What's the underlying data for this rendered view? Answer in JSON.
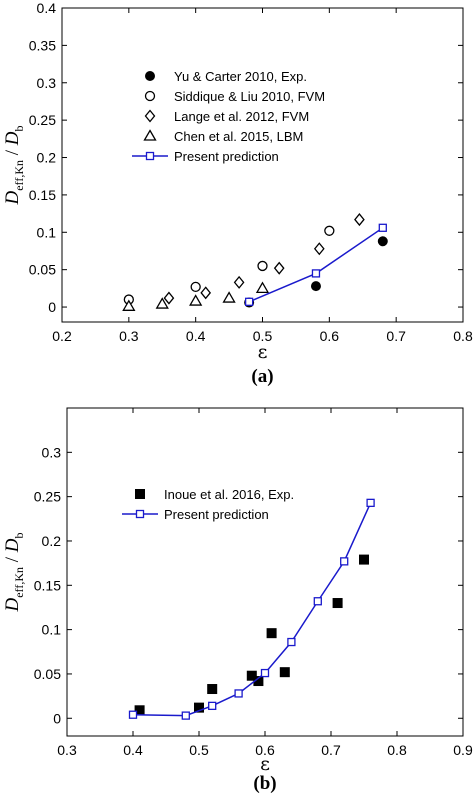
{
  "chart_data": [
    {
      "type": "scatter",
      "panel_label": "(a)",
      "xlabel": "ε",
      "ylabel_main": "D",
      "ylabel_sub": "eff,Kn",
      "ylabel_den": "D",
      "ylabel_den_sub": "b",
      "xlim": [
        0.2,
        0.8
      ],
      "ylim": [
        -0.02,
        0.4
      ],
      "xticks": [
        0.2,
        0.3,
        0.4,
        0.5,
        0.6,
        0.7,
        0.8
      ],
      "yticks": [
        0,
        0.05,
        0.1,
        0.15,
        0.2,
        0.25,
        0.3,
        0.35,
        0.4
      ],
      "xtick_labels": [
        "0.2",
        "0.3",
        "0.4",
        "0.5",
        "0.6",
        "0.7",
        "0.8"
      ],
      "ytick_labels": [
        "0",
        "0.05",
        "0.1",
        "0.15",
        "0.2",
        "0.25",
        "0.3",
        "0.35",
        "0.4"
      ],
      "legend_position": "upper-center",
      "series": [
        {
          "name": "Yu & Carter 2010, Exp.",
          "marker": "filled-circle",
          "color": "#000000",
          "x": [
            0.48,
            0.58,
            0.68
          ],
          "y": [
            0.006,
            0.028,
            0.088
          ]
        },
        {
          "name": "Siddique & Liu 2010, FVM",
          "marker": "open-circle",
          "color": "#000000",
          "x": [
            0.3,
            0.4,
            0.5,
            0.6
          ],
          "y": [
            0.01,
            0.027,
            0.055,
            0.102
          ]
        },
        {
          "name": "Lange et al. 2012, FVM",
          "marker": "open-diamond",
          "color": "#000000",
          "x": [
            0.36,
            0.415,
            0.465,
            0.525,
            0.585,
            0.645
          ],
          "y": [
            0.012,
            0.019,
            0.033,
            0.052,
            0.078,
            0.117
          ]
        },
        {
          "name": "Chen et al. 2015, LBM",
          "marker": "open-triangle",
          "color": "#000000",
          "x": [
            0.3,
            0.35,
            0.4,
            0.45,
            0.5
          ],
          "y": [
            0.001,
            0.004,
            0.008,
            0.012,
            0.025
          ]
        },
        {
          "name": "Present prediction",
          "marker": "open-square-line",
          "color": "#1a1acc",
          "x": [
            0.48,
            0.58,
            0.68
          ],
          "y": [
            0.007,
            0.045,
            0.106
          ]
        }
      ]
    },
    {
      "type": "scatter",
      "panel_label": "(b)",
      "xlabel": "ε",
      "ylabel_main": "D",
      "ylabel_sub": "eff,Kn",
      "ylabel_den": "D",
      "ylabel_den_sub": "b",
      "xlim": [
        0.3,
        0.9
      ],
      "ylim": [
        -0.02,
        0.35
      ],
      "xticks": [
        0.3,
        0.4,
        0.5,
        0.6,
        0.7,
        0.8,
        0.9
      ],
      "yticks": [
        0,
        0.05,
        0.1,
        0.15,
        0.2,
        0.25,
        0.3
      ],
      "xtick_labels": [
        "0.3",
        "0.4",
        "0.5",
        "0.6",
        "0.7",
        "0.8",
        "0.9"
      ],
      "ytick_labels": [
        "0",
        "0.05",
        "0.1",
        "0.15",
        "0.2",
        "0.25",
        "0.3"
      ],
      "legend_position": "upper-left",
      "series": [
        {
          "name": "Inoue et al. 2016, Exp.",
          "marker": "filled-square",
          "color": "#000000",
          "x": [
            0.41,
            0.5,
            0.52,
            0.58,
            0.59,
            0.61,
            0.63,
            0.71,
            0.75
          ],
          "y": [
            0.009,
            0.012,
            0.033,
            0.048,
            0.042,
            0.096,
            0.052,
            0.13,
            0.179
          ]
        },
        {
          "name": "Present prediction",
          "marker": "open-square-line",
          "color": "#1a1acc",
          "x": [
            0.4,
            0.48,
            0.52,
            0.56,
            0.6,
            0.64,
            0.68,
            0.72,
            0.76
          ],
          "y": [
            0.004,
            0.003,
            0.014,
            0.028,
            0.051,
            0.086,
            0.132,
            0.177,
            0.243
          ]
        }
      ]
    }
  ]
}
